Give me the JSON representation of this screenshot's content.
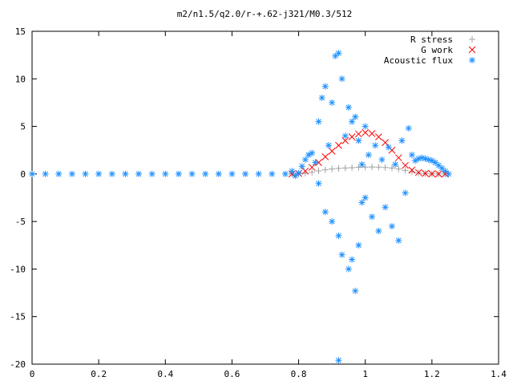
{
  "chart_data": {
    "type": "scatter",
    "title": "m2/n1.5/q2.0/r-+.62-j321/M0.3/512",
    "xlabel": "",
    "ylabel": "",
    "xlim": [
      0,
      1.4
    ],
    "ylim": [
      -20,
      15
    ],
    "xticks": [
      0,
      0.2,
      0.4,
      0.6,
      0.8,
      1,
      1.2,
      1.4
    ],
    "xtick_labels": [
      "0",
      "0.2",
      "0.4",
      "0.6",
      "0.8",
      "1",
      "1.2",
      "1.4"
    ],
    "yticks": [
      -20,
      -15,
      -10,
      -5,
      0,
      5,
      10,
      15
    ],
    "ytick_labels": [
      "-20",
      "-15",
      "-10",
      "-5",
      "0",
      "5",
      "10",
      "15"
    ],
    "grid": false,
    "legend_position": "top-right",
    "series": [
      {
        "name": "R stress",
        "marker": "plus",
        "color": "#a0a0a0",
        "points": [
          [
            0.78,
            0.0
          ],
          [
            0.8,
            0.02
          ],
          [
            0.82,
            0.08
          ],
          [
            0.84,
            0.18
          ],
          [
            0.86,
            0.32
          ],
          [
            0.88,
            0.44
          ],
          [
            0.9,
            0.52
          ],
          [
            0.92,
            0.58
          ],
          [
            0.94,
            0.62
          ],
          [
            0.96,
            0.66
          ],
          [
            0.98,
            0.7
          ],
          [
            1.0,
            0.72
          ],
          [
            1.02,
            0.73
          ],
          [
            1.04,
            0.72
          ],
          [
            1.06,
            0.68
          ],
          [
            1.08,
            0.62
          ],
          [
            1.1,
            0.52
          ],
          [
            1.12,
            0.38
          ],
          [
            1.14,
            0.22
          ],
          [
            1.16,
            0.1
          ],
          [
            1.18,
            0.04
          ],
          [
            1.2,
            0.01
          ],
          [
            1.22,
            0.0
          ],
          [
            1.24,
            0.0
          ]
        ]
      },
      {
        "name": "G work",
        "marker": "cross",
        "color": "#ff0000",
        "points": [
          [
            0.78,
            0.0
          ],
          [
            0.8,
            0.05
          ],
          [
            0.82,
            0.3
          ],
          [
            0.84,
            0.7
          ],
          [
            0.86,
            1.2
          ],
          [
            0.88,
            1.8
          ],
          [
            0.9,
            2.4
          ],
          [
            0.92,
            3.0
          ],
          [
            0.94,
            3.5
          ],
          [
            0.96,
            3.9
          ],
          [
            0.98,
            4.2
          ],
          [
            1.0,
            4.35
          ],
          [
            1.02,
            4.25
          ],
          [
            1.04,
            3.9
          ],
          [
            1.06,
            3.3
          ],
          [
            1.08,
            2.5
          ],
          [
            1.1,
            1.7
          ],
          [
            1.12,
            0.9
          ],
          [
            1.14,
            0.4
          ],
          [
            1.16,
            0.15
          ],
          [
            1.18,
            0.05
          ],
          [
            1.2,
            0.01
          ],
          [
            1.22,
            0.0
          ],
          [
            1.24,
            0.0
          ]
        ]
      },
      {
        "name": "Acoustic flux",
        "marker": "star",
        "color": "#1e90ff",
        "points": [
          [
            0.0,
            0.0
          ],
          [
            0.04,
            0.0
          ],
          [
            0.08,
            0.0
          ],
          [
            0.12,
            0.0
          ],
          [
            0.16,
            0.0
          ],
          [
            0.2,
            0.0
          ],
          [
            0.24,
            0.0
          ],
          [
            0.28,
            0.0
          ],
          [
            0.32,
            0.0
          ],
          [
            0.36,
            0.0
          ],
          [
            0.4,
            0.0
          ],
          [
            0.44,
            0.0
          ],
          [
            0.48,
            0.0
          ],
          [
            0.52,
            0.0
          ],
          [
            0.56,
            0.0
          ],
          [
            0.6,
            0.0
          ],
          [
            0.64,
            0.0
          ],
          [
            0.68,
            0.0
          ],
          [
            0.72,
            0.0
          ],
          [
            0.76,
            0.0
          ],
          [
            0.78,
            0.3
          ],
          [
            0.79,
            -0.2
          ],
          [
            0.8,
            0.1
          ],
          [
            0.81,
            0.8
          ],
          [
            0.82,
            1.5
          ],
          [
            0.83,
            2.0
          ],
          [
            0.84,
            2.2
          ],
          [
            0.85,
            1.2
          ],
          [
            0.86,
            -1.0
          ],
          [
            0.86,
            5.5
          ],
          [
            0.87,
            8.0
          ],
          [
            0.88,
            9.2
          ],
          [
            0.88,
            -4.0
          ],
          [
            0.89,
            3.0
          ],
          [
            0.9,
            7.5
          ],
          [
            0.9,
            -5.0
          ],
          [
            0.91,
            12.4
          ],
          [
            0.92,
            12.7
          ],
          [
            0.92,
            -6.5
          ],
          [
            0.93,
            10.0
          ],
          [
            0.93,
            -8.5
          ],
          [
            0.94,
            4.0
          ],
          [
            0.95,
            7.0
          ],
          [
            0.95,
            -10.0
          ],
          [
            0.96,
            5.5
          ],
          [
            0.96,
            -9.0
          ],
          [
            0.97,
            6.0
          ],
          [
            0.97,
            -12.3
          ],
          [
            0.98,
            3.5
          ],
          [
            0.98,
            -7.5
          ],
          [
            0.99,
            1.0
          ],
          [
            0.99,
            -3.0
          ],
          [
            1.0,
            5.0
          ],
          [
            1.0,
            -2.5
          ],
          [
            1.01,
            2.0
          ],
          [
            1.02,
            -4.5
          ],
          [
            1.03,
            3.0
          ],
          [
            1.04,
            -6.0
          ],
          [
            1.05,
            1.5
          ],
          [
            1.06,
            -3.5
          ],
          [
            1.07,
            2.8
          ],
          [
            1.08,
            -5.5
          ],
          [
            1.09,
            1.0
          ],
          [
            1.1,
            -7.0
          ],
          [
            1.11,
            3.5
          ],
          [
            1.12,
            -2.0
          ],
          [
            1.13,
            4.8
          ],
          [
            1.14,
            2.0
          ],
          [
            1.15,
            1.4
          ],
          [
            1.16,
            1.6
          ],
          [
            1.17,
            1.7
          ],
          [
            1.18,
            1.6
          ],
          [
            1.19,
            1.5
          ],
          [
            1.2,
            1.4
          ],
          [
            1.21,
            1.2
          ],
          [
            1.22,
            0.9
          ],
          [
            1.23,
            0.6
          ],
          [
            1.24,
            0.3
          ],
          [
            1.25,
            0.0
          ],
          [
            0.92,
            -19.6
          ]
        ]
      }
    ]
  }
}
